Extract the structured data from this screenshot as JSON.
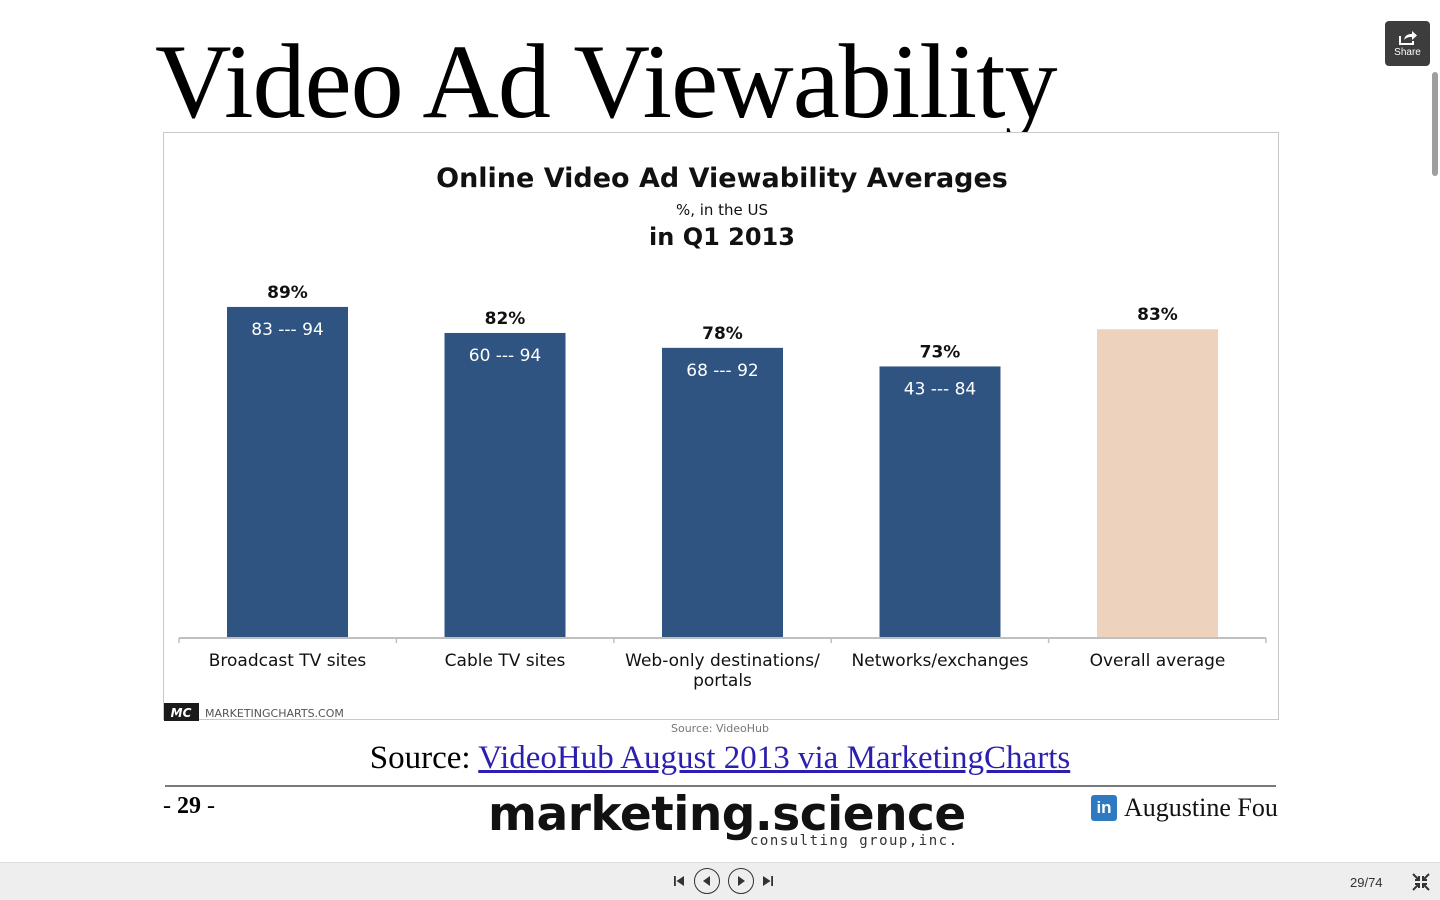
{
  "slide": {
    "title": "Video Ad Viewability",
    "source_prefix": "Source: ",
    "source_link_text": "VideoHub August 2013 via MarketingCharts",
    "page_number_prefix": "- ",
    "page_number": "29",
    "page_number_suffix": " -",
    "logo_main": "marketing.science",
    "logo_sub": "consulting group,inc.",
    "author": "Augustine Fou",
    "linkedin_icon_text": "in"
  },
  "chart_data": {
    "type": "bar",
    "title": "Online Video Ad Viewability Averages",
    "subtitle": "%, in the US",
    "period": "in Q1 2013",
    "categories": [
      [
        "Broadcast TV sites"
      ],
      [
        "Cable TV sites"
      ],
      [
        "Web-only destinations/",
        "portals"
      ],
      [
        "Networks/exchanges"
      ],
      [
        "Overall average"
      ]
    ],
    "values": [
      89,
      82,
      78,
      73,
      83
    ],
    "value_labels": [
      "89%",
      "82%",
      "78%",
      "73%",
      "83%"
    ],
    "range_labels": [
      "83 --- 94",
      "60 --- 94",
      "68 --- 92",
      "43 --- 84",
      ""
    ],
    "colors": [
      "#2f5482",
      "#2f5482",
      "#2f5482",
      "#2f5482",
      "#edd2bd"
    ],
    "ylim": [
      0,
      100
    ],
    "grid": false,
    "legend": "none",
    "brand_logo": "MC",
    "brand_text": "MARKETINGCHARTS.COM",
    "source_note": "Source: VideoHub"
  },
  "share": {
    "label": "Share",
    "icon": "share-icon"
  },
  "controls": {
    "page_counter": "29/74",
    "icons": [
      "first-page-icon",
      "prev-icon",
      "play-icon",
      "last-page-icon",
      "exit-fullscreen-icon"
    ]
  }
}
